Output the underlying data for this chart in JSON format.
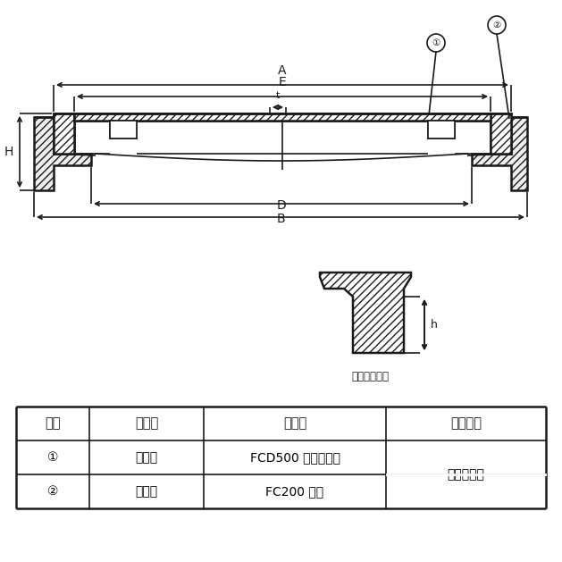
{
  "bg_color": "#ffffff",
  "line_color": "#1a1a1a",
  "lw": 1.2,
  "lw_thick": 1.8,
  "table": {
    "headers": [
      "部番",
      "部品名",
      "材　質",
      "表面処理"
    ],
    "rows": [
      [
        "①",
        "ふ　た",
        "FCD500 ダクタイル",
        "锈止め塗装"
      ],
      [
        "②",
        "受　枠",
        "FC200 镃鉄",
        ""
      ]
    ]
  },
  "futa_label": "ふた端部寸法",
  "dims": {
    "xBL": 38,
    "xBR": 590,
    "xAL": 60,
    "xAR": 572,
    "xEL": 83,
    "xER": 549,
    "xDL": 102,
    "xDR": 528,
    "yTop": 127,
    "yLidInner": 135,
    "yLidBot": 172,
    "yRibBot": 185,
    "yFrameTop": 172,
    "yFrameBot": 213,
    "yFrameFlangeMid": 195
  }
}
